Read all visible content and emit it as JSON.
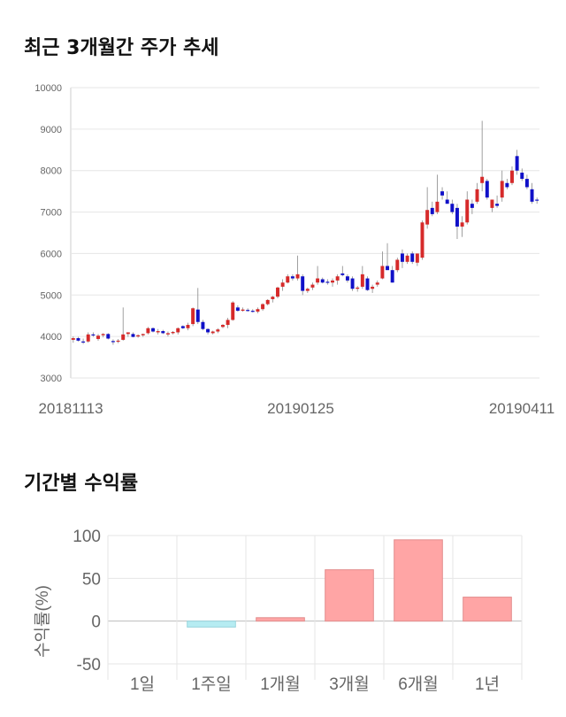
{
  "headings": {
    "price_trend": "최근 3개월간 주가 추세",
    "period_returns": "기간별 수익률"
  },
  "colors": {
    "up": "#d62a2a",
    "down": "#1010c8",
    "grid": "#e6e6e6",
    "bar_positive": "#ffa5a5",
    "bar_negative": "#b6ecf2"
  },
  "chart_data": [
    {
      "type": "candlestick",
      "title": "최근 3개월간 주가 추세",
      "ylim": [
        3000,
        10000
      ],
      "yticks": [
        3000,
        4000,
        5000,
        6000,
        7000,
        8000,
        9000,
        10000
      ],
      "x_labels": [
        "20181113",
        "20190125",
        "20190411"
      ],
      "grid": true,
      "candles": [
        {
          "o": 3920,
          "h": 4000,
          "l": 3850,
          "c": 3960
        },
        {
          "o": 3960,
          "h": 3990,
          "l": 3880,
          "c": 3900
        },
        {
          "o": 3880,
          "h": 3950,
          "l": 3820,
          "c": 3870
        },
        {
          "o": 3880,
          "h": 4100,
          "l": 3850,
          "c": 4050
        },
        {
          "o": 4050,
          "h": 4100,
          "l": 3990,
          "c": 4030
        },
        {
          "o": 3940,
          "h": 4060,
          "l": 3900,
          "c": 4020
        },
        {
          "o": 4030,
          "h": 4080,
          "l": 3980,
          "c": 4060
        },
        {
          "o": 4060,
          "h": 4080,
          "l": 3930,
          "c": 3950
        },
        {
          "o": 3890,
          "h": 3930,
          "l": 3800,
          "c": 3880
        },
        {
          "o": 3880,
          "h": 3940,
          "l": 3840,
          "c": 3900
        },
        {
          "o": 3920,
          "h": 4700,
          "l": 3900,
          "c": 4050
        },
        {
          "o": 4060,
          "h": 4100,
          "l": 3990,
          "c": 4100
        },
        {
          "o": 4060,
          "h": 4100,
          "l": 3980,
          "c": 3990
        },
        {
          "o": 4000,
          "h": 4050,
          "l": 3970,
          "c": 4030
        },
        {
          "o": 4030,
          "h": 4070,
          "l": 3990,
          "c": 4060
        },
        {
          "o": 4080,
          "h": 4230,
          "l": 4050,
          "c": 4200
        },
        {
          "o": 4200,
          "h": 4220,
          "l": 4100,
          "c": 4120
        },
        {
          "o": 4100,
          "h": 4180,
          "l": 4050,
          "c": 4130
        },
        {
          "o": 4130,
          "h": 4160,
          "l": 4060,
          "c": 4080
        },
        {
          "o": 4050,
          "h": 4120,
          "l": 4000,
          "c": 4080
        },
        {
          "o": 4080,
          "h": 4130,
          "l": 4050,
          "c": 4110
        },
        {
          "o": 4100,
          "h": 4220,
          "l": 4050,
          "c": 4200
        },
        {
          "o": 4250,
          "h": 4270,
          "l": 4180,
          "c": 4200
        },
        {
          "o": 4200,
          "h": 4330,
          "l": 4150,
          "c": 4280
        },
        {
          "o": 4300,
          "h": 4700,
          "l": 4250,
          "c": 4680
        },
        {
          "o": 4650,
          "h": 5170,
          "l": 4300,
          "c": 4350
        },
        {
          "o": 4350,
          "h": 4400,
          "l": 4150,
          "c": 4180
        },
        {
          "o": 4180,
          "h": 4200,
          "l": 4050,
          "c": 4100
        },
        {
          "o": 4080,
          "h": 4140,
          "l": 4050,
          "c": 4120
        },
        {
          "o": 4120,
          "h": 4200,
          "l": 4080,
          "c": 4170
        },
        {
          "o": 4230,
          "h": 4300,
          "l": 4200,
          "c": 4280
        },
        {
          "o": 4280,
          "h": 4450,
          "l": 4200,
          "c": 4400
        },
        {
          "o": 4400,
          "h": 4850,
          "l": 4380,
          "c": 4820
        },
        {
          "o": 4700,
          "h": 4750,
          "l": 4600,
          "c": 4620
        },
        {
          "o": 4620,
          "h": 4700,
          "l": 4600,
          "c": 4650
        },
        {
          "o": 4640,
          "h": 4680,
          "l": 4600,
          "c": 4620
        },
        {
          "o": 4620,
          "h": 4660,
          "l": 4580,
          "c": 4600
        },
        {
          "o": 4600,
          "h": 4700,
          "l": 4560,
          "c": 4660
        },
        {
          "o": 4660,
          "h": 4800,
          "l": 4620,
          "c": 4780
        },
        {
          "o": 4780,
          "h": 4900,
          "l": 4750,
          "c": 4880
        },
        {
          "o": 4900,
          "h": 4980,
          "l": 4820,
          "c": 4960
        },
        {
          "o": 4960,
          "h": 5200,
          "l": 4920,
          "c": 5180
        },
        {
          "o": 5200,
          "h": 5380,
          "l": 5100,
          "c": 5300
        },
        {
          "o": 5300,
          "h": 5500,
          "l": 5280,
          "c": 5450
        },
        {
          "o": 5450,
          "h": 5500,
          "l": 5350,
          "c": 5400
        },
        {
          "o": 5400,
          "h": 5950,
          "l": 5350,
          "c": 5500
        },
        {
          "o": 5450,
          "h": 5500,
          "l": 5000,
          "c": 5100
        },
        {
          "o": 5100,
          "h": 5180,
          "l": 5050,
          "c": 5150
        },
        {
          "o": 5180,
          "h": 5300,
          "l": 5120,
          "c": 5250
        },
        {
          "o": 5300,
          "h": 5700,
          "l": 5250,
          "c": 5400
        },
        {
          "o": 5380,
          "h": 5420,
          "l": 5280,
          "c": 5300
        },
        {
          "o": 5320,
          "h": 5380,
          "l": 5250,
          "c": 5300
        },
        {
          "o": 5300,
          "h": 5400,
          "l": 5200,
          "c": 5350
        },
        {
          "o": 5350,
          "h": 5500,
          "l": 5250,
          "c": 5450
        },
        {
          "o": 5520,
          "h": 5700,
          "l": 5450,
          "c": 5480
        },
        {
          "o": 5450,
          "h": 5500,
          "l": 5300,
          "c": 5350
        },
        {
          "o": 5400,
          "h": 5450,
          "l": 5100,
          "c": 5150
        },
        {
          "o": 5150,
          "h": 5220,
          "l": 5080,
          "c": 5180
        },
        {
          "o": 5200,
          "h": 5700,
          "l": 5150,
          "c": 5500
        },
        {
          "o": 5400,
          "h": 5450,
          "l": 5100,
          "c": 5120
        },
        {
          "o": 5150,
          "h": 5250,
          "l": 5050,
          "c": 5200
        },
        {
          "o": 5250,
          "h": 5350,
          "l": 5200,
          "c": 5300
        },
        {
          "o": 5400,
          "h": 6050,
          "l": 5380,
          "c": 5700
        },
        {
          "o": 5700,
          "h": 6250,
          "l": 5650,
          "c": 5600
        },
        {
          "o": 5600,
          "h": 5700,
          "l": 5300,
          "c": 5300
        },
        {
          "o": 5600,
          "h": 5900,
          "l": 5550,
          "c": 5850
        },
        {
          "o": 6000,
          "h": 6100,
          "l": 5650,
          "c": 5800
        },
        {
          "o": 5800,
          "h": 6000,
          "l": 5750,
          "c": 5950
        },
        {
          "o": 6000,
          "h": 6050,
          "l": 5750,
          "c": 5800
        },
        {
          "o": 5780,
          "h": 6000,
          "l": 5700,
          "c": 6000
        },
        {
          "o": 5900,
          "h": 6800,
          "l": 5850,
          "c": 6750
        },
        {
          "o": 6700,
          "h": 7600,
          "l": 6600,
          "c": 7050
        },
        {
          "o": 7100,
          "h": 7250,
          "l": 6900,
          "c": 6950
        },
        {
          "o": 7000,
          "h": 7900,
          "l": 6950,
          "c": 7250
        },
        {
          "o": 7500,
          "h": 7600,
          "l": 7300,
          "c": 7400
        },
        {
          "o": 7300,
          "h": 7500,
          "l": 7200,
          "c": 7200
        },
        {
          "o": 7200,
          "h": 7300,
          "l": 6950,
          "c": 7000
        },
        {
          "o": 7100,
          "h": 7200,
          "l": 6350,
          "c": 6650
        },
        {
          "o": 6650,
          "h": 6900,
          "l": 6400,
          "c": 6750
        },
        {
          "o": 6750,
          "h": 7500,
          "l": 6700,
          "c": 7300
        },
        {
          "o": 7200,
          "h": 7300,
          "l": 6950,
          "c": 7100
        },
        {
          "o": 7250,
          "h": 7700,
          "l": 7200,
          "c": 7550
        },
        {
          "o": 7700,
          "h": 9200,
          "l": 7500,
          "c": 7850
        },
        {
          "o": 7750,
          "h": 7800,
          "l": 7300,
          "c": 7350
        },
        {
          "o": 7100,
          "h": 7300,
          "l": 7000,
          "c": 7300
        },
        {
          "o": 7200,
          "h": 7400,
          "l": 7100,
          "c": 7150
        },
        {
          "o": 7350,
          "h": 8000,
          "l": 7250,
          "c": 7750
        },
        {
          "o": 7700,
          "h": 7800,
          "l": 7550,
          "c": 7600
        },
        {
          "o": 7700,
          "h": 8100,
          "l": 7650,
          "c": 8000
        },
        {
          "o": 8350,
          "h": 8500,
          "l": 7900,
          "c": 8000
        },
        {
          "o": 7950,
          "h": 8050,
          "l": 7750,
          "c": 7800
        },
        {
          "o": 7800,
          "h": 7900,
          "l": 7550,
          "c": 7600
        },
        {
          "o": 7550,
          "h": 7700,
          "l": 7200,
          "c": 7250
        },
        {
          "o": 7300,
          "h": 7350,
          "l": 7200,
          "c": 7280
        }
      ]
    },
    {
      "type": "bar",
      "title": "기간별 수익률",
      "ylabel": "수익률(%)",
      "ylim": [
        -50,
        100
      ],
      "yticks": [
        -50,
        0,
        50,
        100
      ],
      "grid": true,
      "categories": [
        "1일",
        "1주일",
        "1개월",
        "3개월",
        "6개월",
        "1년"
      ],
      "values": [
        0,
        -7,
        4,
        60,
        95,
        28
      ]
    }
  ]
}
